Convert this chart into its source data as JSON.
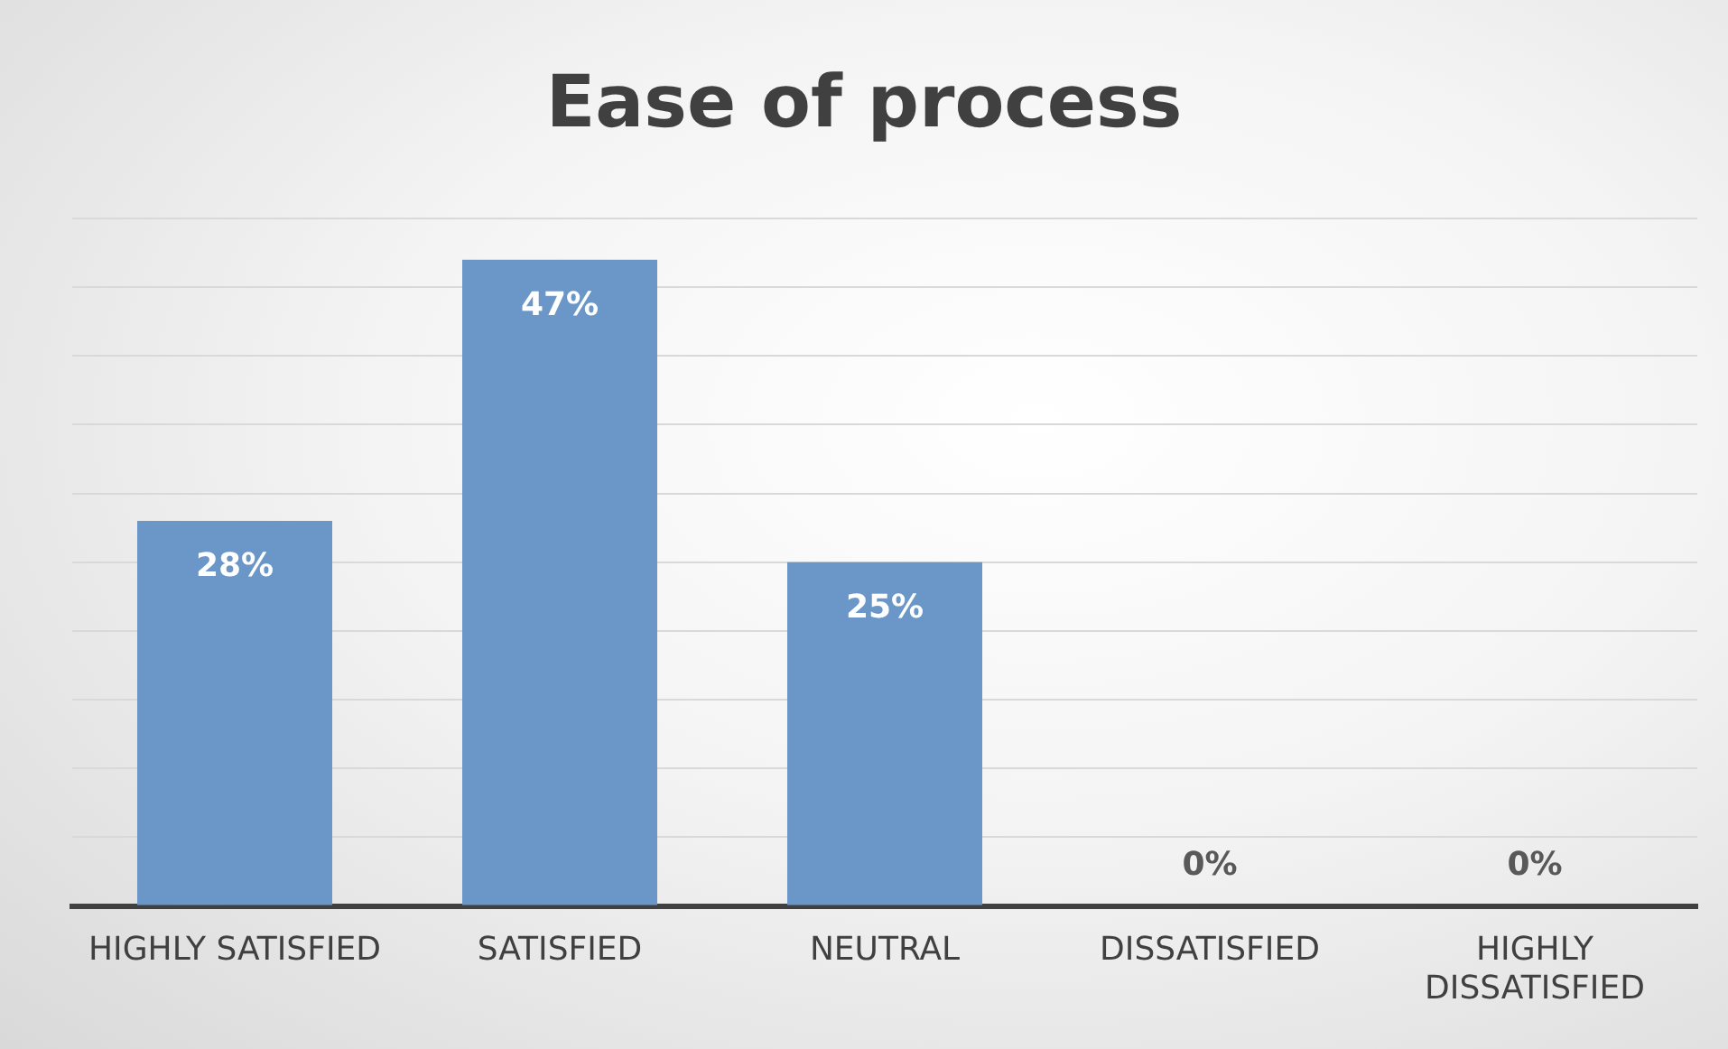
{
  "chart_data": {
    "type": "bar",
    "title": "Ease of process",
    "categories": [
      "HIGHLY SATISFIED",
      "SATISFIED",
      "NEUTRAL",
      "DISSATISFIED",
      "HIGHLY DISSATISFIED"
    ],
    "values": [
      28,
      47,
      25,
      0,
      0
    ],
    "value_labels": [
      "28%",
      "47%",
      "25%",
      "0%",
      "0%"
    ],
    "color": "#6a96c8",
    "ylim": [
      0,
      50
    ],
    "yticks": [
      {
        "value": 0,
        "label": null
      },
      {
        "value": 5,
        "label": null
      },
      {
        "value": 10,
        "label": null
      },
      {
        "value": 15,
        "label": null
      },
      {
        "value": 20,
        "label": null
      },
      {
        "value": 25,
        "label": null
      },
      {
        "value": 30,
        "label": null
      },
      {
        "value": 35,
        "label": null
      },
      {
        "value": 40,
        "label": null
      },
      {
        "value": 45,
        "label": null
      },
      {
        "value": 50,
        "label": null
      }
    ],
    "tick_labels": "x",
    "grid": "y"
  }
}
